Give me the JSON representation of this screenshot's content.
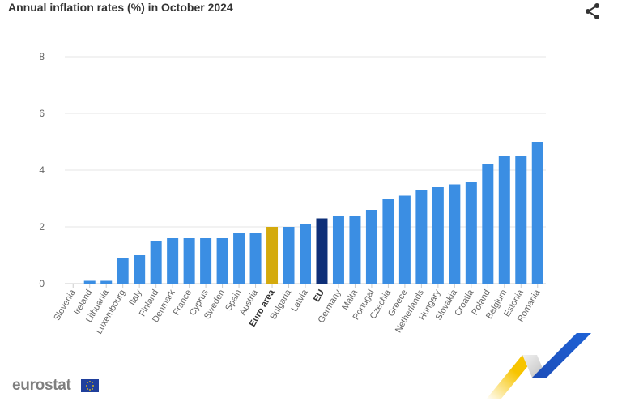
{
  "header": {
    "title": "Annual inflation rates (%) in October 2024",
    "share_icon": "share-icon"
  },
  "footer": {
    "brand": "eurostat",
    "flag_icon": "eu-flag-icon"
  },
  "colors": {
    "default_bar": "#3b8ee3",
    "euro_area_bar": "#d4aa0d",
    "eu_bar": "#0e2f78",
    "grid": "#e6e6e6"
  },
  "chart_data": {
    "type": "bar",
    "title": "Annual inflation rates (%) in October 2024",
    "xlabel": "",
    "ylabel": "",
    "ylim": [
      0,
      8
    ],
    "yticks": [
      0,
      2,
      4,
      6,
      8
    ],
    "grid": true,
    "categories": [
      "Slovenia",
      "Ireland",
      "Lithuania",
      "Luxembourg",
      "Italy",
      "Finland",
      "Denmark",
      "France",
      "Cyprus",
      "Sweden",
      "Spain",
      "Austria",
      "Euro area",
      "Bulgaria",
      "Latvia",
      "EU",
      "Germany",
      "Malta",
      "Portugal",
      "Czechia",
      "Greece",
      "Netherlands",
      "Hungary",
      "Slovakia",
      "Croatia",
      "Poland",
      "Belgium",
      "Estonia",
      "Romania"
    ],
    "values": [
      0.0,
      0.1,
      0.1,
      0.9,
      1.0,
      1.5,
      1.6,
      1.6,
      1.6,
      1.6,
      1.8,
      1.8,
      2.0,
      2.0,
      2.1,
      2.3,
      2.4,
      2.4,
      2.6,
      3.0,
      3.1,
      3.3,
      3.4,
      3.5,
      3.6,
      4.2,
      4.5,
      4.5,
      5.0
    ],
    "highlight": {
      "Euro area": "euro_area_bar",
      "EU": "eu_bar"
    }
  }
}
